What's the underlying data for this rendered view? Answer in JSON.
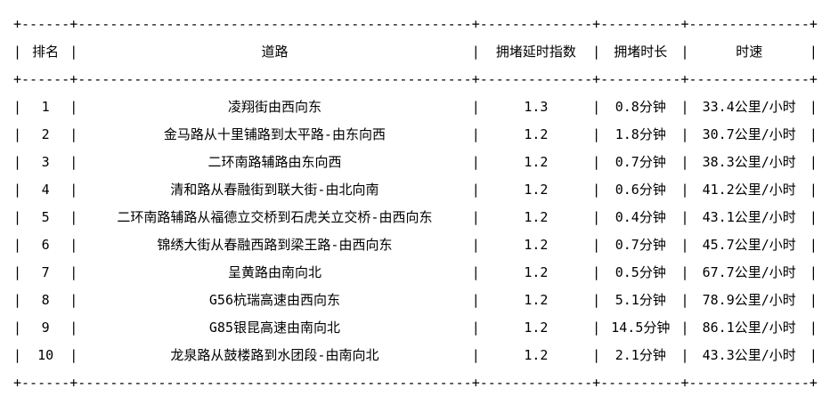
{
  "chart_data": {
    "type": "table",
    "title": "",
    "columns": [
      "排名",
      "道路",
      "拥堵延时指数",
      "拥堵时长",
      "时速"
    ],
    "column_keys": [
      "rank",
      "road",
      "delay-index",
      "duration",
      "speed"
    ],
    "rows": [
      [
        "1",
        "凌翔街由西向东",
        "1.3",
        "0.8分钟",
        "33.4公里/小时"
      ],
      [
        "2",
        "金马路从十里铺路到太平路-由东向西",
        "1.2",
        "1.8分钟",
        "30.7公里/小时"
      ],
      [
        "3",
        "二环南路辅路由东向西",
        "1.2",
        "0.7分钟",
        "38.3公里/小时"
      ],
      [
        "4",
        "清和路从春融街到联大街-由北向南",
        "1.2",
        "0.6分钟",
        "41.2公里/小时"
      ],
      [
        "5",
        "二环南路辅路从福德立交桥到石虎关立交桥-由西向东",
        "1.2",
        "0.4分钟",
        "43.1公里/小时"
      ],
      [
        "6",
        "锦绣大街从春融西路到梁王路-由西向东",
        "1.2",
        "0.7分钟",
        "45.7公里/小时"
      ],
      [
        "7",
        "呈黄路由南向北",
        "1.2",
        "0.5分钟",
        "67.7公里/小时"
      ],
      [
        "8",
        "G56杭瑞高速由西向东",
        "1.2",
        "5.1分钟",
        "78.9公里/小时"
      ],
      [
        "9",
        "G85银昆高速由南向北",
        "1.2",
        "14.5分钟",
        "86.1公里/小时"
      ],
      [
        "10",
        "龙泉路从鼓楼路到水团段-由南向北",
        "1.2",
        "2.1分钟",
        "43.3公里/小时"
      ]
    ]
  },
  "style": {
    "column_widths_ch": [
      6,
      49,
      14,
      10,
      15
    ],
    "text_color": "#000000",
    "background_color": "#ffffff",
    "border_chars": {
      "junction": "+",
      "horizontal": "-",
      "vertical": "|"
    }
  }
}
